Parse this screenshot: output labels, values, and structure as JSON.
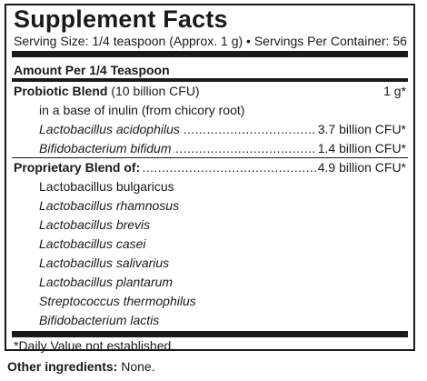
{
  "title": "Supplement Facts",
  "serving_line": "Serving Size: 1/4 teaspoon (Approx. 1 g) • Servings Per Container: 56",
  "amount_header": "Amount Per 1/4 Teaspoon",
  "probiotic": {
    "name": "Probiotic Blend",
    "detail": " (10 billion CFU)",
    "amount": "1 g*",
    "base_note": "in a base of inulin (from chicory root)",
    "strains": [
      {
        "name": "Lactobacillus acidophilus",
        "amount": "3.7 billion CFU*"
      },
      {
        "name": "Bifidobacterium bifidum",
        "amount": "1.4 billion CFU*"
      }
    ]
  },
  "proprietary": {
    "name": "Proprietary Blend of:",
    "amount": "4.9 billion CFU*",
    "strains": [
      "Lactobacillus bulgaricus",
      "Lactobacillus rhamnosus",
      "Lactobacillus brevis",
      "Lactobacillus casei",
      "Lactobacillus salivarius",
      "Lactobacillus plantarum",
      "Streptococcus thermophilus",
      "Bifidobacterium lactis"
    ]
  },
  "footnote": "*Daily Value not established.",
  "other_ingredients": {
    "label": "Other ingredients:",
    "value": " None."
  }
}
